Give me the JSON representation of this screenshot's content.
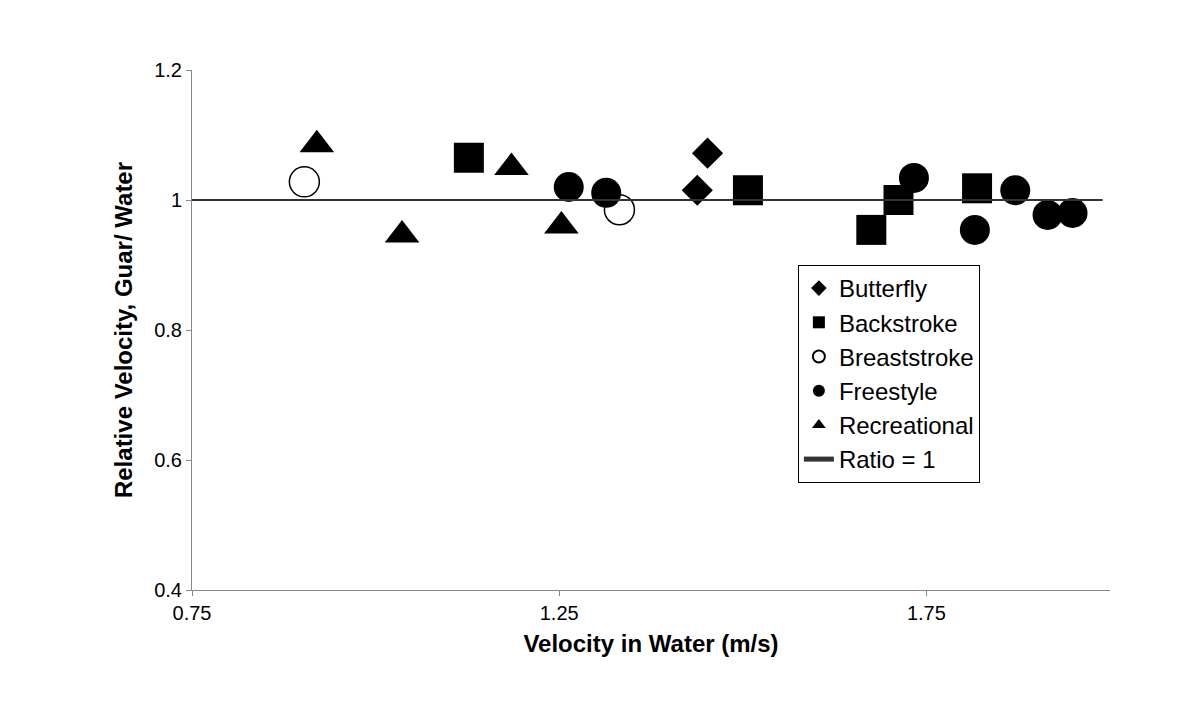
{
  "chart_data": {
    "type": "scatter",
    "x_label": "Velocity in Water (m/s)",
    "y_label": "Relative Velocity, Guar/ Water",
    "xlim": [
      0.75,
      2.0
    ],
    "xticks": [
      0.75,
      1.25,
      1.75
    ],
    "ylim": [
      0.4,
      1.2
    ],
    "yticks": [
      0.4,
      0.6,
      0.8,
      1,
      1.2
    ],
    "grid": false,
    "legend": "lower right",
    "series": [
      {
        "name": "Butterfly",
        "color": "#000000",
        "marker": "diamond",
        "x": [
          1.452,
          1.438
        ],
        "values": [
          1.072,
          1.015
        ]
      },
      {
        "name": "Backstroke",
        "color": "#000000",
        "marker": "square",
        "x": [
          1.127,
          1.507,
          1.675,
          1.712,
          1.819
        ],
        "values": [
          1.065,
          1.015,
          0.954,
          1.0,
          1.018
        ]
      },
      {
        "name": "Breaststroke",
        "color": "#000000",
        "marker": "circle-open",
        "x": [
          0.903,
          1.332
        ],
        "values": [
          1.028,
          0.985
        ]
      },
      {
        "name": "Freestyle",
        "color": "#000000",
        "marker": "circle",
        "x": [
          1.263,
          1.314,
          1.733,
          1.816,
          1.871,
          1.915,
          1.949
        ],
        "values": [
          1.02,
          1.011,
          1.034,
          0.954,
          1.015,
          0.977,
          0.98
        ]
      },
      {
        "name": "Recreational",
        "color": "#000000",
        "marker": "triangle-up",
        "x": [
          0.92,
          1.036,
          1.185,
          1.253
        ],
        "values": [
          1.085,
          0.946,
          1.05,
          0.96
        ]
      },
      {
        "name": "Ratio = 1",
        "color": "#333333",
        "type": "line",
        "line_style": "solid",
        "x": [
          0.75,
          1.99
        ],
        "values": [
          1,
          1
        ]
      }
    ]
  }
}
